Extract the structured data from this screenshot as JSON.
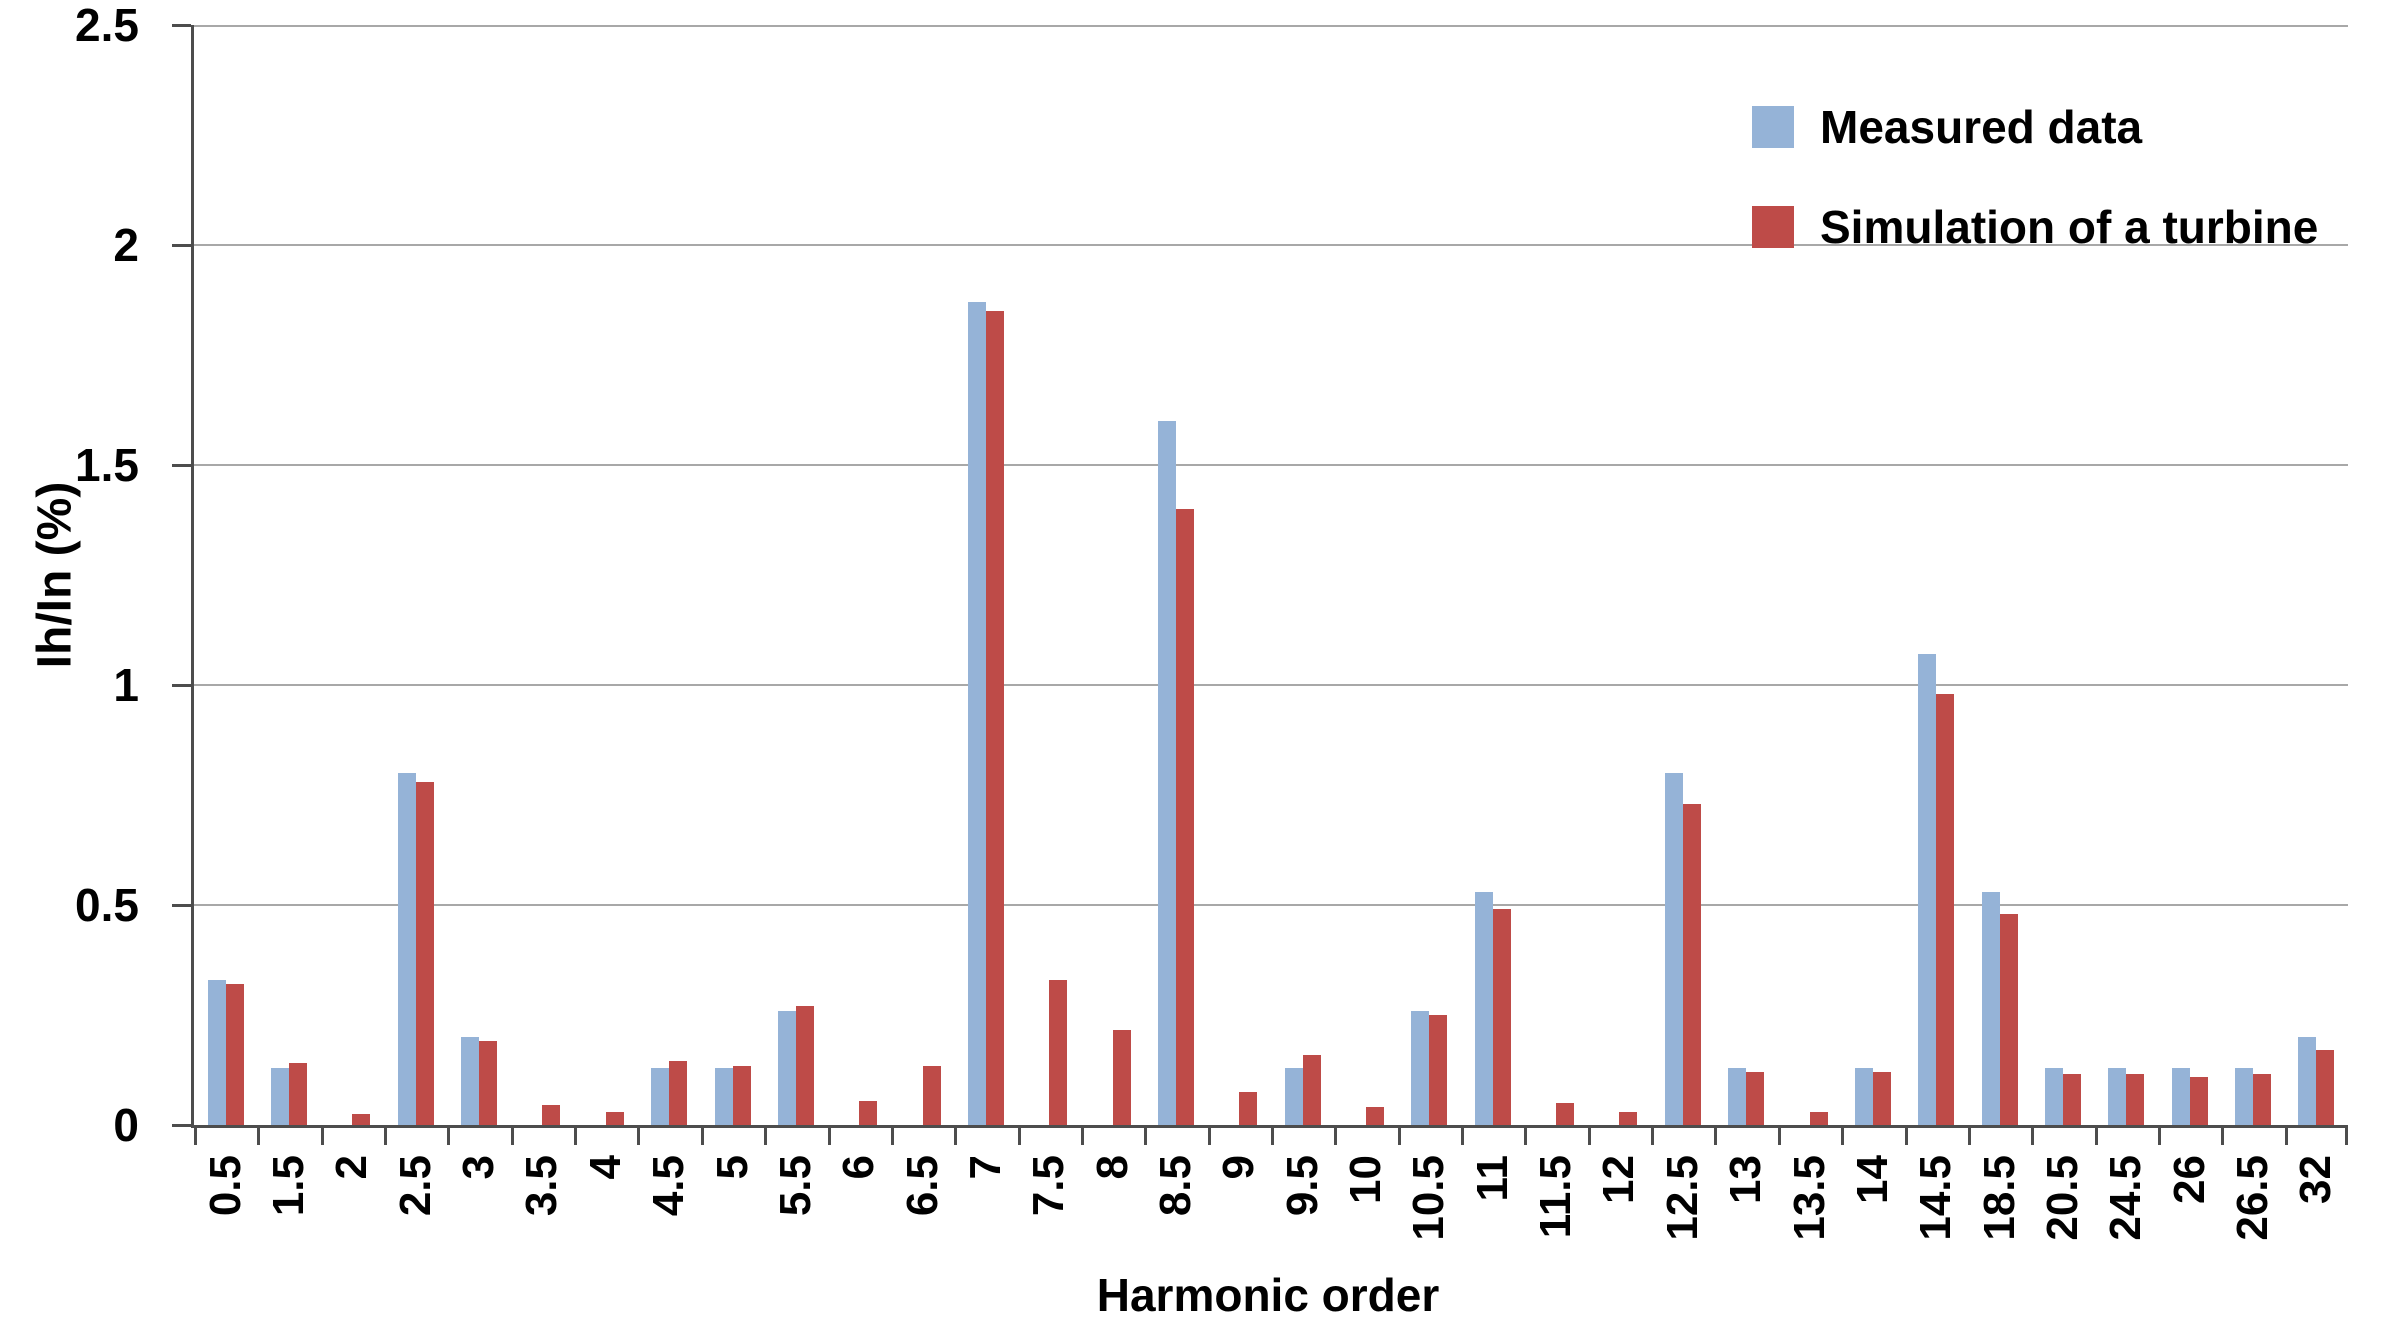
{
  "chart_data": {
    "type": "bar",
    "title": "",
    "xlabel": "Harmonic order",
    "ylabel": "Ih/In (%)",
    "ylim": [
      0,
      2.5
    ],
    "ytick_labels": [
      "0",
      "0.5",
      "1",
      "1.5",
      "2",
      "2.5"
    ],
    "grid": "horizontal gridlines every 0.5",
    "legend_position": "top-right inside plot area",
    "bar_layout": "grouped pairs per category, rotated category labels",
    "categories": [
      "0.5",
      "1.5",
      "2",
      "2.5",
      "3",
      "3.5",
      "4",
      "4.5",
      "5",
      "5.5",
      "6",
      "6.5",
      "7",
      "7.5",
      "8",
      "8.5",
      "9",
      "9.5",
      "10",
      "10.5",
      "11",
      "11.5",
      "12",
      "12.5",
      "13",
      "13.5",
      "14",
      "14.5",
      "18.5",
      "20.5",
      "24.5",
      "26",
      "26.5",
      "32"
    ],
    "series": [
      {
        "name": "Measured data",
        "color": "#95B3D7",
        "values": [
          0.33,
          0.13,
          null,
          0.8,
          0.2,
          null,
          null,
          0.13,
          0.13,
          0.26,
          null,
          null,
          1.87,
          null,
          null,
          1.6,
          null,
          0.13,
          null,
          0.26,
          0.53,
          null,
          null,
          0.8,
          0.13,
          null,
          0.13,
          1.07,
          0.53,
          0.13,
          0.13,
          0.13,
          0.13,
          0.2
        ]
      },
      {
        "name": "Simulation of a turbine",
        "color": "#BE4B48",
        "values": [
          0.32,
          0.14,
          0.025,
          0.78,
          0.19,
          0.045,
          0.03,
          0.145,
          0.135,
          0.27,
          0.055,
          0.135,
          1.85,
          0.33,
          0.215,
          1.4,
          0.075,
          0.16,
          0.04,
          0.25,
          0.49,
          0.05,
          0.03,
          0.73,
          0.12,
          0.03,
          0.12,
          0.98,
          0.48,
          0.115,
          0.115,
          0.11,
          0.115,
          0.17
        ]
      }
    ]
  },
  "colors": {
    "measured": "#95B3D7",
    "simulation": "#BE4B48",
    "axis": "#4D4D4D",
    "gridline": "#A8A8A8",
    "text": "#000000",
    "background": "#FFFFFF"
  }
}
